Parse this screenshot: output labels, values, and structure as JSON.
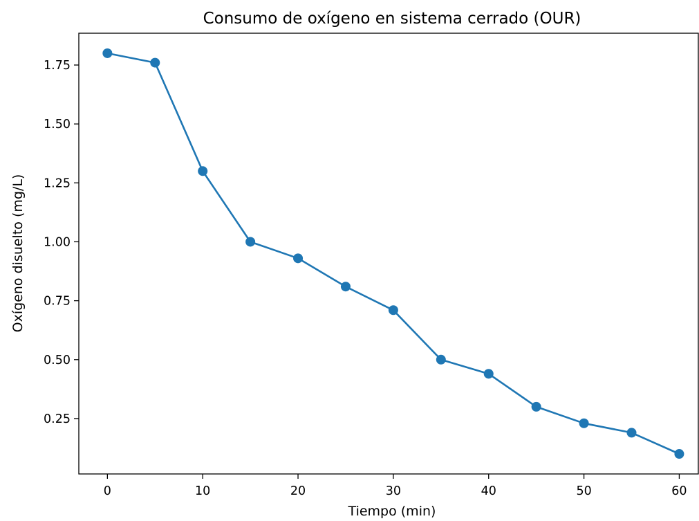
{
  "chart_data": {
    "type": "line",
    "title": "Consumo de oxígeno en sistema cerrado (OUR)",
    "xlabel": "Tiempo (min)",
    "ylabel": "Oxígeno disuelto (mg/L)",
    "x": [
      0,
      5,
      10,
      15,
      20,
      25,
      30,
      35,
      40,
      45,
      50,
      55,
      60
    ],
    "series": [
      {
        "values": [
          1.8,
          1.76,
          1.3,
          1.0,
          0.93,
          0.81,
          0.71,
          0.5,
          0.44,
          0.3,
          0.23,
          0.19,
          0.1
        ],
        "marker": "circle"
      }
    ],
    "xlim": [
      -3,
      62
    ],
    "ylim": [
      0.015,
      1.885
    ],
    "xticks": [
      0,
      10,
      20,
      30,
      40,
      50,
      60
    ],
    "xtick_labels": [
      "0",
      "10",
      "20",
      "30",
      "40",
      "50",
      "60"
    ],
    "yticks": [
      0.25,
      0.5,
      0.75,
      1.0,
      1.25,
      1.5,
      1.75
    ],
    "ytick_labels": [
      "0.25",
      "0.50",
      "0.75",
      "1.00",
      "1.25",
      "1.50",
      "1.75"
    ],
    "grid": false,
    "legend": "none",
    "colors": {
      "series": "#1f77b4",
      "axes": "#000000",
      "background": "#ffffff"
    }
  }
}
